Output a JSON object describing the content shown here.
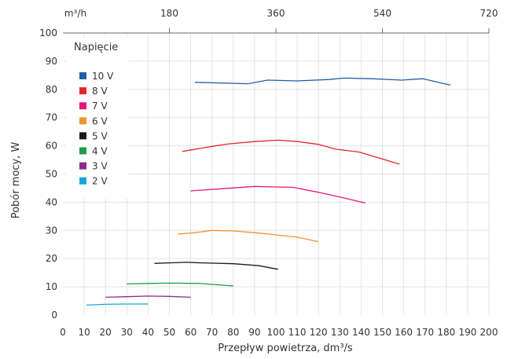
{
  "chart_data": {
    "type": "line",
    "xlabel": "Przepływ powietrza, dm³/s",
    "ylabel": "Pobór mocy, W",
    "xlim": [
      0,
      200
    ],
    "ylim": [
      0,
      100
    ],
    "x_ticks": [
      0,
      10,
      20,
      30,
      40,
      50,
      60,
      70,
      80,
      90,
      100,
      110,
      120,
      130,
      140,
      150,
      160,
      170,
      180,
      190,
      200
    ],
    "y_ticks": [
      0,
      10,
      20,
      30,
      40,
      50,
      60,
      70,
      80,
      90,
      100
    ],
    "top_axis": {
      "unit_label": "m³/h",
      "ticks": [
        180,
        360,
        540,
        720
      ],
      "conversion_factor": 3.6
    },
    "grid": true,
    "legend": {
      "title": "Napięcie",
      "placement": "top-left"
    },
    "series": [
      {
        "name": "10 V",
        "color": "#1f5fa8",
        "x": [
          62,
          87,
          96,
          110,
          125,
          132,
          145,
          159,
          169,
          182
        ],
        "y": [
          82.5,
          82,
          83.3,
          83,
          83.5,
          84,
          83.8,
          83.3,
          83.8,
          81.5
        ]
      },
      {
        "name": "8 V",
        "color": "#e3262e",
        "x": [
          56,
          70,
          78,
          90,
          101,
          110,
          120,
          128,
          139,
          158
        ],
        "y": [
          58,
          59.8,
          60.7,
          61.5,
          62,
          61.5,
          60.5,
          58.8,
          57.8,
          53.5
        ]
      },
      {
        "name": "7 V",
        "color": "#e5177d",
        "x": [
          60,
          75,
          90,
          100,
          108,
          120,
          132,
          142
        ],
        "y": [
          44,
          44.8,
          45.6,
          45.4,
          45.3,
          43.5,
          41.5,
          39.7
        ]
      },
      {
        "name": "6 V",
        "color": "#f0932b",
        "x": [
          54,
          62,
          70,
          80,
          90,
          100,
          110,
          120
        ],
        "y": [
          28.7,
          29.2,
          30,
          29.8,
          29.2,
          28.4,
          27.6,
          26
        ]
      },
      {
        "name": "5 V",
        "color": "#1a1a1a",
        "x": [
          43,
          50,
          58,
          65,
          80,
          92,
          101
        ],
        "y": [
          18.3,
          18.5,
          18.7,
          18.5,
          18.2,
          17.5,
          16.2
        ]
      },
      {
        "name": "4 V",
        "color": "#1f9c46",
        "x": [
          30,
          40,
          50,
          64,
          80
        ],
        "y": [
          11,
          11.2,
          11.3,
          11.2,
          10.3
        ]
      },
      {
        "name": "3 V",
        "color": "#8e2c8e",
        "x": [
          20,
          30,
          40,
          50,
          60
        ],
        "y": [
          6.3,
          6.5,
          6.7,
          6.6,
          6.3
        ]
      },
      {
        "name": "2 V",
        "color": "#1aa6dd",
        "x": [
          11,
          20,
          30,
          40
        ],
        "y": [
          3.5,
          3.8,
          3.9,
          3.9
        ]
      }
    ]
  }
}
